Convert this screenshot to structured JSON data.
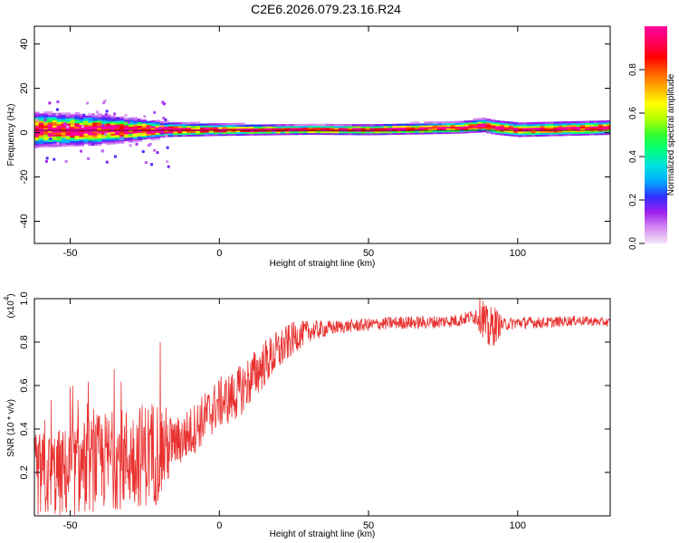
{
  "title": "C2E6.2026.079.23.16.R24",
  "colors": {
    "snr_line": "#e8312f",
    "frame": "#000000",
    "zero_line": "#000000"
  },
  "chart_data": [
    {
      "type": "heatmap",
      "name": "spectrogram",
      "xlabel": "Height of straight line (km)",
      "ylabel": "Frequency (Hz)",
      "xlim": [
        -62,
        131
      ],
      "ylim": [
        -50,
        48
      ],
      "xticks": [
        -50,
        0,
        50,
        100
      ],
      "yticks": [
        -40,
        -20,
        0,
        20,
        40
      ],
      "colorbar": {
        "label": "Normalized spectral amplitude",
        "range": [
          0.0,
          1.0
        ],
        "ticks": [
          "0.0",
          "0.2",
          "0.4",
          "0.6",
          "0.8"
        ],
        "tick_values": [
          0.0,
          0.2,
          0.4,
          0.6,
          0.8
        ],
        "colormap": [
          "#f5e6fa",
          "#d48cf0",
          "#a020f0",
          "#3030ff",
          "#00aaff",
          "#00dfe0",
          "#00ff80",
          "#30ff30",
          "#b0ff00",
          "#ffff00",
          "#ffb000",
          "#ff6000",
          "#ff0000",
          "#ff0060",
          "#ff00a0"
        ]
      },
      "center_frequency": [
        [
          -62,
          1
        ],
        [
          -40,
          1
        ],
        [
          -20,
          1
        ],
        [
          0,
          1
        ],
        [
          20,
          1
        ],
        [
          50,
          1
        ],
        [
          80,
          2
        ],
        [
          88,
          3
        ],
        [
          92,
          2
        ],
        [
          100,
          1
        ],
        [
          131,
          2
        ]
      ],
      "band_half_width": [
        [
          -62,
          7
        ],
        [
          -40,
          6
        ],
        [
          -25,
          4
        ],
        [
          -18,
          3
        ],
        [
          0,
          2.5
        ],
        [
          30,
          2
        ],
        [
          80,
          2.5
        ],
        [
          90,
          3
        ],
        [
          131,
          3
        ]
      ]
    },
    {
      "type": "line",
      "name": "snr",
      "xlabel": "Height of straight line (km)",
      "ylabel": "SNR (10 * v/v)",
      "multiplier_label": "(x10",
      "multiplier_exponent": "4",
      "xlim": [
        -62,
        131
      ],
      "ylim": [
        0,
        1.0
      ],
      "xticks": [
        -50,
        0,
        50,
        100
      ],
      "yticks": [
        0.2,
        0.4,
        0.6,
        0.8,
        1.0
      ],
      "ytick_labels": [
        "0.2",
        "0.4",
        "0.6",
        "0.8",
        "1.0"
      ],
      "envelope": [
        [
          -62,
          0.18
        ],
        [
          -50,
          0.2
        ],
        [
          -40,
          0.25
        ],
        [
          -30,
          0.27
        ],
        [
          -20,
          0.3
        ],
        [
          -15,
          0.33
        ],
        [
          -10,
          0.38
        ],
        [
          -5,
          0.45
        ],
        [
          0,
          0.52
        ],
        [
          5,
          0.55
        ],
        [
          10,
          0.62
        ],
        [
          15,
          0.7
        ],
        [
          20,
          0.76
        ],
        [
          25,
          0.82
        ],
        [
          30,
          0.85
        ],
        [
          40,
          0.87
        ],
        [
          50,
          0.88
        ],
        [
          60,
          0.89
        ],
        [
          70,
          0.89
        ],
        [
          80,
          0.9
        ],
        [
          88,
          0.93
        ],
        [
          90,
          0.85
        ],
        [
          92,
          0.88
        ],
        [
          95,
          0.88
        ],
        [
          100,
          0.89
        ],
        [
          110,
          0.89
        ],
        [
          120,
          0.9
        ],
        [
          131,
          0.89
        ]
      ],
      "noise": [
        [
          -62,
          0.2
        ],
        [
          -20,
          0.25
        ],
        [
          -15,
          0.12
        ],
        [
          0,
          0.12
        ],
        [
          10,
          0.12
        ],
        [
          20,
          0.1
        ],
        [
          30,
          0.05
        ],
        [
          40,
          0.03
        ],
        [
          85,
          0.03
        ],
        [
          88,
          0.1
        ],
        [
          92,
          0.1
        ],
        [
          95,
          0.03
        ],
        [
          131,
          0.02
        ]
      ]
    }
  ]
}
